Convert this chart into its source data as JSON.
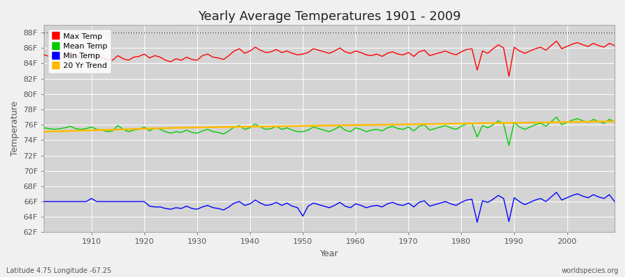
{
  "title": "Yearly Average Temperatures 1901 - 2009",
  "ylabel": "Temperature",
  "xlabel": "Year",
  "bottom_left": "Latitude 4.75 Longitude -67.25",
  "bottom_right": "worldspecies.org",
  "years": [
    1901,
    1902,
    1903,
    1904,
    1905,
    1906,
    1907,
    1908,
    1909,
    1910,
    1911,
    1912,
    1913,
    1914,
    1915,
    1916,
    1917,
    1918,
    1919,
    1920,
    1921,
    1922,
    1923,
    1924,
    1925,
    1926,
    1927,
    1928,
    1929,
    1930,
    1931,
    1932,
    1933,
    1934,
    1935,
    1936,
    1937,
    1938,
    1939,
    1940,
    1941,
    1942,
    1943,
    1944,
    1945,
    1946,
    1947,
    1948,
    1949,
    1950,
    1951,
    1952,
    1953,
    1954,
    1955,
    1956,
    1957,
    1958,
    1959,
    1960,
    1961,
    1962,
    1963,
    1964,
    1965,
    1966,
    1967,
    1968,
    1969,
    1970,
    1971,
    1972,
    1973,
    1974,
    1975,
    1976,
    1977,
    1978,
    1979,
    1980,
    1981,
    1982,
    1983,
    1984,
    1985,
    1986,
    1987,
    1988,
    1989,
    1990,
    1991,
    1992,
    1993,
    1994,
    1995,
    1996,
    1997,
    1998,
    1999,
    2000,
    2001,
    2002,
    2003,
    2004,
    2005,
    2006,
    2007,
    2008,
    2009
  ],
  "max_temp": [
    85.1,
    84.9,
    84.7,
    84.5,
    84.8,
    85.3,
    85.1,
    84.6,
    84.9,
    85.3,
    85.0,
    84.7,
    84.5,
    84.4,
    85.0,
    84.6,
    84.4,
    84.8,
    84.9,
    85.2,
    84.7,
    85.0,
    84.8,
    84.4,
    84.2,
    84.6,
    84.4,
    84.8,
    84.5,
    84.4,
    85.0,
    85.2,
    84.8,
    84.7,
    84.5,
    85.0,
    85.6,
    85.9,
    85.3,
    85.6,
    86.1,
    85.7,
    85.4,
    85.5,
    85.8,
    85.4,
    85.6,
    85.3,
    85.1,
    85.2,
    85.4,
    85.9,
    85.7,
    85.5,
    85.3,
    85.6,
    86.0,
    85.5,
    85.3,
    85.6,
    85.4,
    85.1,
    85.0,
    85.2,
    84.9,
    85.3,
    85.5,
    85.2,
    85.1,
    85.4,
    84.9,
    85.5,
    85.7,
    85.0,
    85.2,
    85.4,
    85.6,
    85.3,
    85.1,
    85.5,
    85.8,
    85.9,
    83.1,
    85.6,
    85.3,
    85.9,
    86.4,
    86.0,
    82.3,
    86.1,
    85.6,
    85.3,
    85.6,
    85.9,
    86.1,
    85.7,
    86.3,
    86.9,
    85.9,
    86.2,
    86.5,
    86.7,
    86.4,
    86.2,
    86.6,
    86.3,
    86.1,
    86.6,
    86.3
  ],
  "mean_temp": [
    75.6,
    75.5,
    75.4,
    75.5,
    75.6,
    75.8,
    75.5,
    75.4,
    75.5,
    75.7,
    75.4,
    75.3,
    75.1,
    75.2,
    75.9,
    75.4,
    75.1,
    75.3,
    75.4,
    75.7,
    75.2,
    75.6,
    75.4,
    75.1,
    74.9,
    75.1,
    75.0,
    75.3,
    75.0,
    74.9,
    75.2,
    75.4,
    75.1,
    75.0,
    74.8,
    75.2,
    75.7,
    75.9,
    75.4,
    75.6,
    76.1,
    75.7,
    75.4,
    75.5,
    75.8,
    75.4,
    75.6,
    75.3,
    75.1,
    75.1,
    75.3,
    75.7,
    75.5,
    75.3,
    75.1,
    75.4,
    75.8,
    75.3,
    75.1,
    75.6,
    75.4,
    75.1,
    75.3,
    75.4,
    75.2,
    75.6,
    75.8,
    75.5,
    75.4,
    75.7,
    75.2,
    75.8,
    76.0,
    75.3,
    75.5,
    75.7,
    75.9,
    75.6,
    75.4,
    75.8,
    76.1,
    76.2,
    74.4,
    75.9,
    75.6,
    76.0,
    76.5,
    76.1,
    73.3,
    76.3,
    75.7,
    75.4,
    75.7,
    76.0,
    76.2,
    75.8,
    76.4,
    77.0,
    76.0,
    76.3,
    76.6,
    76.8,
    76.5,
    76.3,
    76.7,
    76.4,
    76.2,
    76.7,
    76.4
  ],
  "min_temp": [
    66.0,
    66.0,
    66.0,
    66.0,
    66.0,
    66.0,
    66.0,
    66.0,
    66.0,
    66.4,
    66.0,
    66.0,
    66.0,
    66.0,
    66.0,
    66.0,
    66.0,
    66.0,
    66.0,
    66.0,
    65.4,
    65.3,
    65.3,
    65.1,
    65.0,
    65.2,
    65.1,
    65.4,
    65.1,
    65.0,
    65.3,
    65.5,
    65.2,
    65.1,
    64.9,
    65.3,
    65.8,
    66.0,
    65.5,
    65.7,
    66.2,
    65.8,
    65.5,
    65.6,
    65.9,
    65.5,
    65.8,
    65.4,
    65.2,
    64.1,
    65.4,
    65.8,
    65.6,
    65.4,
    65.2,
    65.5,
    65.9,
    65.4,
    65.2,
    65.7,
    65.5,
    65.2,
    65.4,
    65.5,
    65.3,
    65.7,
    65.9,
    65.6,
    65.5,
    65.8,
    65.3,
    65.9,
    66.1,
    65.4,
    65.6,
    65.8,
    66.0,
    65.7,
    65.5,
    65.9,
    66.2,
    66.3,
    63.3,
    66.1,
    65.9,
    66.3,
    66.8,
    66.4,
    63.4,
    66.5,
    66.0,
    65.6,
    65.9,
    66.2,
    66.4,
    66.0,
    66.6,
    67.2,
    66.2,
    66.5,
    66.8,
    67.0,
    66.7,
    66.5,
    66.9,
    66.6,
    66.4,
    66.9,
    66.0
  ],
  "trend": [
    75.1,
    75.12,
    75.14,
    75.16,
    75.18,
    75.2,
    75.22,
    75.24,
    75.26,
    75.28,
    75.3,
    75.32,
    75.34,
    75.36,
    75.38,
    75.4,
    75.42,
    75.44,
    75.46,
    75.48,
    75.5,
    75.52,
    75.54,
    75.56,
    75.58,
    75.6,
    75.62,
    75.63,
    75.64,
    75.65,
    75.66,
    75.67,
    75.68,
    75.69,
    75.7,
    75.71,
    75.72,
    75.73,
    75.74,
    75.75,
    75.76,
    75.77,
    75.78,
    75.79,
    75.8,
    75.81,
    75.82,
    75.83,
    75.84,
    75.85,
    75.86,
    75.87,
    75.88,
    75.89,
    75.9,
    75.91,
    75.92,
    75.93,
    75.94,
    75.95,
    75.96,
    75.97,
    75.98,
    75.99,
    76.0,
    76.01,
    76.02,
    76.03,
    76.04,
    76.05,
    76.06,
    76.07,
    76.08,
    76.09,
    76.1,
    76.11,
    76.12,
    76.13,
    76.14,
    76.15,
    76.16,
    76.17,
    76.18,
    76.19,
    76.2,
    76.21,
    76.22,
    76.23,
    76.24,
    76.25,
    76.26,
    76.27,
    76.28,
    76.29,
    76.3,
    76.31,
    76.32,
    76.33,
    76.34,
    76.35,
    76.36,
    76.37,
    76.38,
    76.39,
    76.4,
    76.41,
    76.42,
    76.43,
    76.44
  ],
  "max_color": "#ff0000",
  "mean_color": "#00cc00",
  "min_color": "#0000ff",
  "trend_color": "#ffbb00",
  "fig_bg_color": "#f0f0f0",
  "plot_bg_color": "#d4d4d4",
  "grid_color": "#ffffff",
  "tick_color": "#555555",
  "ylim_min": 62,
  "ylim_max": 89,
  "yticks": [
    62,
    64,
    66,
    68,
    70,
    72,
    74,
    76,
    78,
    80,
    82,
    84,
    86,
    88
  ],
  "ytick_labels": [
    "62F",
    "64F",
    "66F",
    "68F",
    "70F",
    "72F",
    "74F",
    "76F",
    "78F",
    "80F",
    "82F",
    "84F",
    "86F",
    "88F"
  ],
  "xticks": [
    1910,
    1920,
    1930,
    1940,
    1950,
    1960,
    1970,
    1980,
    1990,
    2000
  ],
  "hline_y": 88,
  "title_fontsize": 13,
  "legend_loc": "upper left",
  "linewidth": 1.0,
  "trend_linewidth": 1.8,
  "legend_fontsize": 8,
  "axis_label_fontsize": 9,
  "tick_fontsize": 8
}
